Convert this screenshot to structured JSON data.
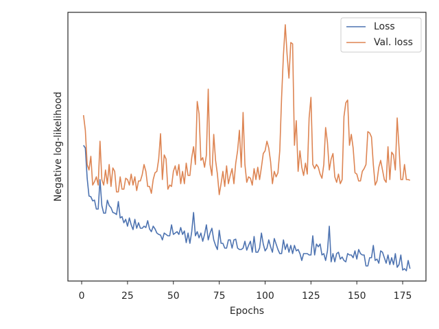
{
  "chart_data": {
    "type": "line",
    "x_label": "Epochs",
    "y_label": "Negative log-likelihood",
    "x": [
      1,
      2,
      3,
      4,
      5,
      6,
      7,
      8,
      9,
      10,
      11,
      12,
      13,
      14,
      15,
      16,
      17,
      18,
      19,
      20,
      21,
      22,
      23,
      24,
      25,
      26,
      27,
      28,
      29,
      30,
      31,
      32,
      33,
      34,
      35,
      36,
      37,
      38,
      39,
      40,
      41,
      42,
      43,
      44,
      45,
      46,
      47,
      48,
      49,
      50,
      51,
      52,
      53,
      54,
      55,
      56,
      57,
      58,
      59,
      60,
      61,
      62,
      63,
      64,
      65,
      66,
      67,
      68,
      69,
      70,
      71,
      72,
      73,
      74,
      75,
      76,
      77,
      78,
      79,
      80,
      81,
      82,
      83,
      84,
      85,
      86,
      87,
      88,
      89,
      90,
      91,
      92,
      93,
      94,
      95,
      96,
      97,
      98,
      99,
      100,
      101,
      102,
      103,
      104,
      105,
      106,
      107,
      108,
      109,
      110,
      111,
      112,
      113,
      114,
      115,
      116,
      117,
      118,
      119,
      120,
      121,
      122,
      123,
      124,
      125,
      126,
      127,
      128,
      129,
      130,
      131,
      132,
      133,
      134,
      135,
      136,
      137,
      138,
      139,
      140,
      141,
      142,
      143,
      144,
      145,
      146,
      147,
      148,
      149,
      150,
      151,
      152,
      153,
      154,
      155,
      156,
      157,
      158,
      159,
      160,
      161,
      162,
      163,
      164,
      165,
      166,
      167,
      168,
      169,
      170,
      171,
      172,
      173,
      174,
      175,
      176,
      177,
      178,
      179
    ],
    "series": [
      {
        "name": "Loss",
        "color": "#4c72b0",
        "values": [
          198,
          194,
          150,
          124,
          123,
          117,
          118,
          105,
          105,
          148,
          110,
          99,
          99,
          118,
          110,
          107,
          100,
          99,
          97,
          116,
          92,
          94,
          85,
          90,
          80,
          92,
          82,
          75,
          90,
          77,
          85,
          77,
          77,
          80,
          78,
          88,
          76,
          72,
          80,
          76,
          70,
          68,
          67,
          60,
          70,
          68,
          66,
          66,
          82,
          68,
          70,
          72,
          68,
          78,
          68,
          73,
          56,
          70,
          55,
          72,
          100,
          66,
          72,
          63,
          70,
          58,
          68,
          82,
          60,
          70,
          77,
          60,
          52,
          46,
          74,
          55,
          55,
          48,
          48,
          60,
          60,
          48,
          60,
          61,
          48,
          46,
          46,
          48,
          58,
          45,
          52,
          58,
          42,
          65,
          42,
          42,
          48,
          70,
          54,
          44,
          48,
          60,
          50,
          42,
          62,
          54,
          46,
          40,
          40,
          60,
          46,
          54,
          42,
          52,
          40,
          52,
          44,
          46,
          40,
          30,
          40,
          40,
          40,
          38,
          38,
          66,
          38,
          54,
          50,
          54,
          38,
          40,
          30,
          44,
          80,
          28,
          40,
          28,
          40,
          42,
          32,
          35,
          30,
          28,
          40,
          38,
          38,
          34,
          44,
          32,
          46,
          40,
          38,
          38,
          22,
          22,
          34,
          34,
          52,
          30,
          32,
          26,
          44,
          42,
          34,
          26,
          38,
          24,
          34,
          24,
          40,
          20,
          24,
          38,
          16,
          18,
          15,
          30,
          18
        ]
      },
      {
        "name": "Val. loss",
        "color": "#dd8452",
        "values": [
          242,
          220,
          170,
          162,
          182,
          140,
          145,
          152,
          140,
          204,
          148,
          140,
          162,
          142,
          170,
          138,
          165,
          160,
          130,
          130,
          152,
          134,
          134,
          150,
          148,
          140,
          156,
          140,
          152,
          132,
          146,
          146,
          155,
          170,
          160,
          138,
          138,
          128,
          148,
          158,
          160,
          178,
          215,
          148,
          184,
          178,
          134,
          140,
          138,
          160,
          168,
          154,
          170,
          142,
          160,
          142,
          172,
          154,
          154,
          180,
          196,
          170,
          262,
          244,
          176,
          180,
          166,
          184,
          280,
          170,
          154,
          214,
          176,
          156,
          126,
          142,
          160,
          138,
          168,
          142,
          154,
          164,
          142,
          172,
          190,
          220,
          166,
          246,
          170,
          144,
          152,
          150,
          140,
          164,
          148,
          166,
          148,
          166,
          186,
          190,
          204,
          194,
          174,
          142,
          160,
          152,
          158,
          190,
          268,
          330,
          374,
          330,
          296,
          348,
          346,
          198,
          234,
          160,
          190,
          166,
          154,
          172,
          156,
          238,
          268,
          170,
          164,
          170,
          166,
          156,
          150,
          170,
          224,
          202,
          162,
          178,
          186,
          152,
          144,
          156,
          142,
          148,
          240,
          260,
          264,
          198,
          214,
          194,
          158,
          156,
          146,
          146,
          160,
          164,
          170,
          218,
          216,
          210,
          170,
          140,
          146,
          166,
          176,
          162,
          148,
          144,
          196,
          148,
          188,
          184,
          162,
          238,
          195,
          148,
          148,
          170,
          148,
          148,
          147
        ]
      }
    ],
    "xlim": [
      -7.5,
      187.7
    ],
    "xticks": [
      0,
      25,
      50,
      75,
      100,
      125,
      150,
      175
    ],
    "ylim": [
      0,
      392
    ],
    "legend": "upper right"
  }
}
